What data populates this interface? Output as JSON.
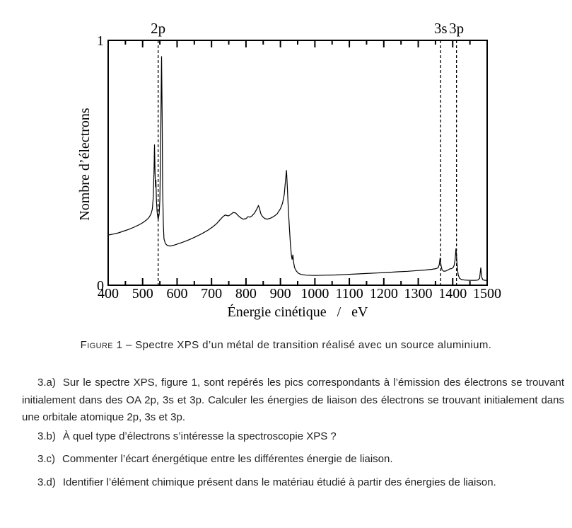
{
  "page": {
    "background": "#ffffff",
    "ink_color": "#000000"
  },
  "chart_data": {
    "type": "line",
    "title": "",
    "xlabel": "Énergie cinétique   /   eV",
    "ylabel": "Nombre d’électrons",
    "xlim": [
      400,
      1500
    ],
    "ylim": [
      0,
      1
    ],
    "grid": false,
    "legend_position": "none",
    "x_major_ticks": [
      400,
      500,
      600,
      700,
      800,
      900,
      1000,
      1100,
      1200,
      1300,
      1400,
      1500
    ],
    "x_minor_step": 50,
    "y_ticks": [
      {
        "value": 0,
        "label": "0"
      },
      {
        "value": 1,
        "label": "1"
      }
    ],
    "peak_annotations": [
      {
        "x": 545,
        "label": "2p"
      },
      {
        "x": 1365,
        "label": "3s"
      },
      {
        "x": 1411,
        "label": "3p"
      }
    ],
    "series": [
      {
        "name": "Spectre XPS",
        "points": [
          [
            400,
            0.205
          ],
          [
            415,
            0.209
          ],
          [
            430,
            0.214
          ],
          [
            445,
            0.221
          ],
          [
            460,
            0.228
          ],
          [
            475,
            0.237
          ],
          [
            490,
            0.247
          ],
          [
            500,
            0.255
          ],
          [
            510,
            0.265
          ],
          [
            518,
            0.276
          ],
          [
            524,
            0.29
          ],
          [
            528,
            0.31
          ],
          [
            531,
            0.36
          ],
          [
            533,
            0.46
          ],
          [
            534.5,
            0.575
          ],
          [
            536,
            0.46
          ],
          [
            537.5,
            0.4
          ],
          [
            538.5,
            0.43
          ],
          [
            540,
            0.35
          ],
          [
            542,
            0.3
          ],
          [
            545,
            0.268
          ],
          [
            548,
            0.29
          ],
          [
            550,
            0.35
          ],
          [
            552,
            0.55
          ],
          [
            554,
            0.8
          ],
          [
            555,
            0.935
          ],
          [
            556.5,
            0.7
          ],
          [
            558,
            0.4
          ],
          [
            560,
            0.25
          ],
          [
            562,
            0.19
          ],
          [
            566,
            0.17
          ],
          [
            572,
            0.162
          ],
          [
            580,
            0.16
          ],
          [
            590,
            0.163
          ],
          [
            600,
            0.168
          ],
          [
            615,
            0.175
          ],
          [
            630,
            0.183
          ],
          [
            645,
            0.192
          ],
          [
            660,
            0.202
          ],
          [
            675,
            0.213
          ],
          [
            690,
            0.225
          ],
          [
            705,
            0.24
          ],
          [
            715,
            0.252
          ],
          [
            725,
            0.268
          ],
          [
            733,
            0.28
          ],
          [
            740,
            0.287
          ],
          [
            748,
            0.283
          ],
          [
            755,
            0.288
          ],
          [
            763,
            0.297
          ],
          [
            770,
            0.295
          ],
          [
            777,
            0.285
          ],
          [
            784,
            0.276
          ],
          [
            792,
            0.27
          ],
          [
            800,
            0.272
          ],
          [
            806,
            0.28
          ],
          [
            812,
            0.278
          ],
          [
            818,
            0.284
          ],
          [
            825,
            0.295
          ],
          [
            831,
            0.31
          ],
          [
            836,
            0.325
          ],
          [
            839,
            0.315
          ],
          [
            843,
            0.292
          ],
          [
            848,
            0.28
          ],
          [
            855,
            0.272
          ],
          [
            862,
            0.27
          ],
          [
            870,
            0.273
          ],
          [
            880,
            0.28
          ],
          [
            890,
            0.291
          ],
          [
            900,
            0.312
          ],
          [
            906,
            0.335
          ],
          [
            911,
            0.37
          ],
          [
            915,
            0.43
          ],
          [
            917.5,
            0.47
          ],
          [
            920,
            0.4
          ],
          [
            923,
            0.31
          ],
          [
            926,
            0.235
          ],
          [
            929,
            0.165
          ],
          [
            932,
            0.12
          ],
          [
            934,
            0.105
          ],
          [
            936,
            0.125
          ],
          [
            938,
            0.095
          ],
          [
            941,
            0.072
          ],
          [
            946,
            0.058
          ],
          [
            952,
            0.049
          ],
          [
            960,
            0.044
          ],
          [
            975,
            0.041
          ],
          [
            1000,
            0.04
          ],
          [
            1030,
            0.041
          ],
          [
            1060,
            0.042
          ],
          [
            1090,
            0.044
          ],
          [
            1120,
            0.046
          ],
          [
            1150,
            0.048
          ],
          [
            1180,
            0.05
          ],
          [
            1210,
            0.052
          ],
          [
            1240,
            0.055
          ],
          [
            1270,
            0.057
          ],
          [
            1300,
            0.06
          ],
          [
            1320,
            0.062
          ],
          [
            1340,
            0.065
          ],
          [
            1352,
            0.068
          ],
          [
            1358,
            0.072
          ],
          [
            1361,
            0.085
          ],
          [
            1363.5,
            0.112
          ],
          [
            1366,
            0.082
          ],
          [
            1369,
            0.063
          ],
          [
            1374,
            0.057
          ],
          [
            1380,
            0.058
          ],
          [
            1386,
            0.062
          ],
          [
            1392,
            0.067
          ],
          [
            1397,
            0.068
          ],
          [
            1401,
            0.072
          ],
          [
            1404,
            0.08
          ],
          [
            1407,
            0.105
          ],
          [
            1409.5,
            0.15
          ],
          [
            1411.5,
            0.11
          ],
          [
            1413.5,
            0.068
          ],
          [
            1416,
            0.042
          ],
          [
            1420,
            0.028
          ],
          [
            1426,
            0.023
          ],
          [
            1435,
            0.021
          ],
          [
            1450,
            0.02
          ],
          [
            1465,
            0.02
          ],
          [
            1473,
            0.021
          ],
          [
            1478,
            0.028
          ],
          [
            1481.5,
            0.072
          ],
          [
            1484,
            0.034
          ],
          [
            1487,
            0.023
          ],
          [
            1493,
            0.02
          ],
          [
            1500,
            0.02
          ]
        ]
      }
    ]
  },
  "caption": {
    "label": "Figure 1",
    "separator": "–",
    "text": "Spectre XPS d’un métal de transition réalisé avec un source aluminium."
  },
  "questions": [
    {
      "num": "3.a)",
      "text": "Sur le spectre XPS, figure 1, sont repérés les pics correspondants à l’émission des électrons se trouvant initialement dans des OA 2p, 3s et 3p. Calculer les énergies de liaison des électrons se trouvant initialement dans une orbitale atomique 2p, 3s et 3p."
    },
    {
      "num": "3.b)",
      "text": "À quel type d’électrons s’intéresse la spectroscopie XPS ?"
    },
    {
      "num": "3.c)",
      "text": "Commenter l’écart énergétique entre les différentes énergie de liaison."
    },
    {
      "num": "3.d)",
      "text": "Identifier l’élément chimique présent dans le matériau étudié à partir des énergies de liaison."
    }
  ]
}
